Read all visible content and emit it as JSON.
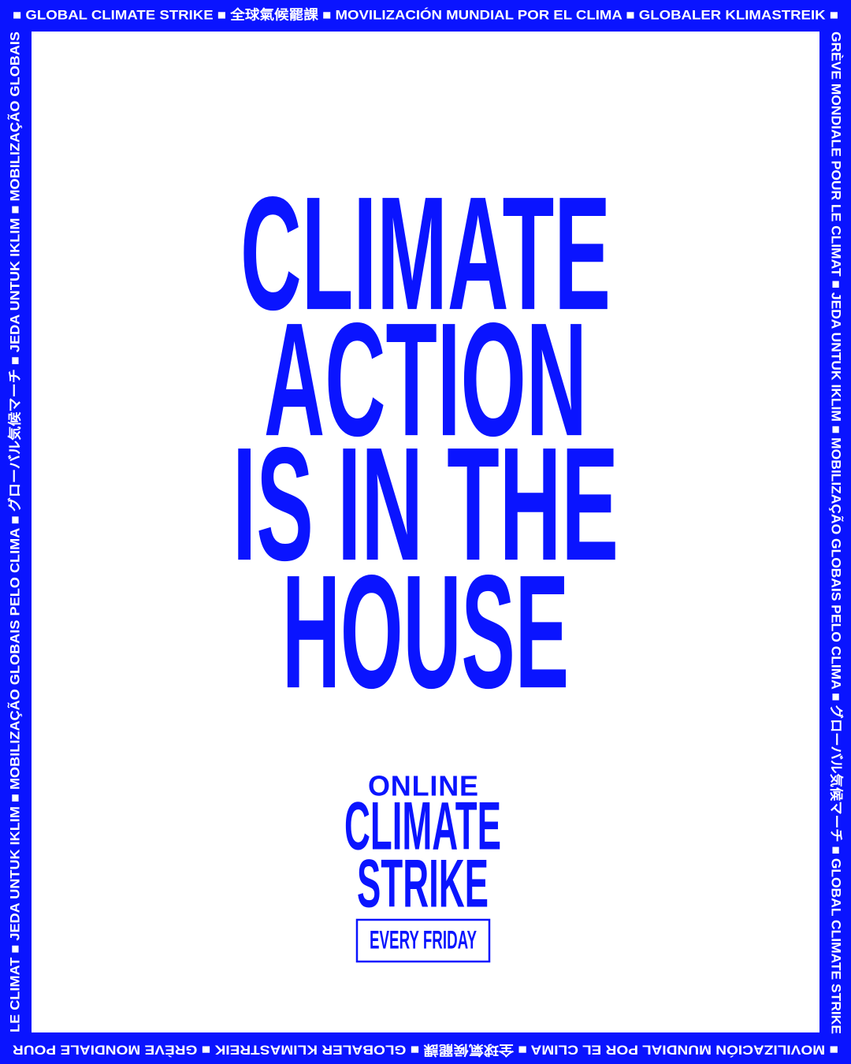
{
  "frame": {
    "top": "■ GLOBAL CLIMATE STRIKE ■ 全球氣候罷課 ■ MOVILIZACIÓN MUNDIAL POR EL CLIMA ■ GLOBALER KLIMASTREIK ■",
    "right": "GRÈVE MONDIALE POUR LE CLIMAT ■ JEDA UNTUK IKLIM ■ MOBILIZAÇÃO GLOBAIS PELO CLIMA ■ グローバル気候マーチ ■ GLOBAL CLIMATE STRIKE",
    "bottom": "■ MOVILIZACIÓN MUNDIAL POR EL CLIMA ■ 全球氣候罷課 ■ GLOBALER KLIMASTREIK ■ GRÈVE MONDIALE POUR",
    "left": "LE CLIMAT ■ JEDA UNTUK IKLIM ■ MOBILIZAÇÃO GLOBAIS PELO CLIMA ■ グローバル気候マーチ ■ JEDA UNTUK IKLIM ■ MOBILIZAÇÃO GLOBAIS"
  },
  "headline": [
    "CLIMATE",
    "ACTION",
    "IS IN THE",
    "HOUSE"
  ],
  "logo": {
    "kicker": "ONLINE",
    "line1": "CLIMATE",
    "line2": "STRIKE",
    "badge": "EVERY FRIDAY"
  }
}
